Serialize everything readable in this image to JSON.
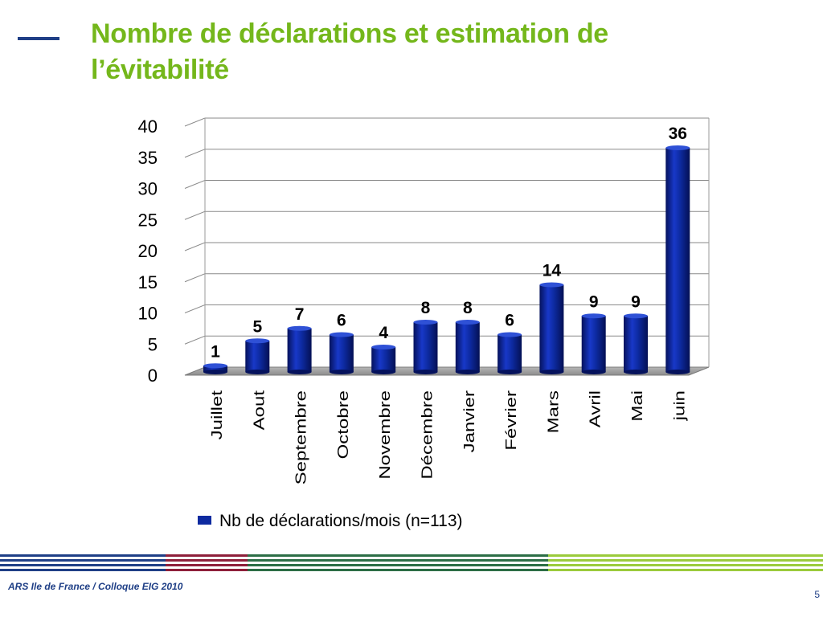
{
  "slide": {
    "title_line1": "Nombre de déclarations et estimation de",
    "title_line2": "l’évitabilité",
    "footer_text": "ARS Ile de France / Colloque EIG 2010",
    "page_number": "5"
  },
  "colors": {
    "title": "#74b71b",
    "bar": "#0d2aa0",
    "footer_text": "#1f3f86",
    "band_blue": "#1f3f86",
    "band_red": "#8e1f3a",
    "band_green": "#2c6e46",
    "band_lime": "#9bcb3b"
  },
  "chart_data": {
    "type": "bar",
    "style": "3d",
    "categories": [
      "Juillet",
      "Aout",
      "Septembre",
      "Octobre",
      "Novembre",
      "Décembre",
      "Janvier",
      "Février",
      "Mars",
      "Avril",
      "Mai",
      "juin"
    ],
    "series": [
      {
        "name": "Nb de déclarations/mois  (n=113)",
        "values": [
          1,
          5,
          7,
          6,
          4,
          8,
          8,
          6,
          14,
          9,
          9,
          36
        ]
      }
    ],
    "ylim": [
      0,
      40
    ],
    "yticks": [
      "0",
      "5",
      "10",
      "15",
      "20",
      "25",
      "30",
      "35",
      "40"
    ],
    "grid": true,
    "legend_position": "bottom",
    "title": "",
    "xlabel": "",
    "ylabel": ""
  }
}
